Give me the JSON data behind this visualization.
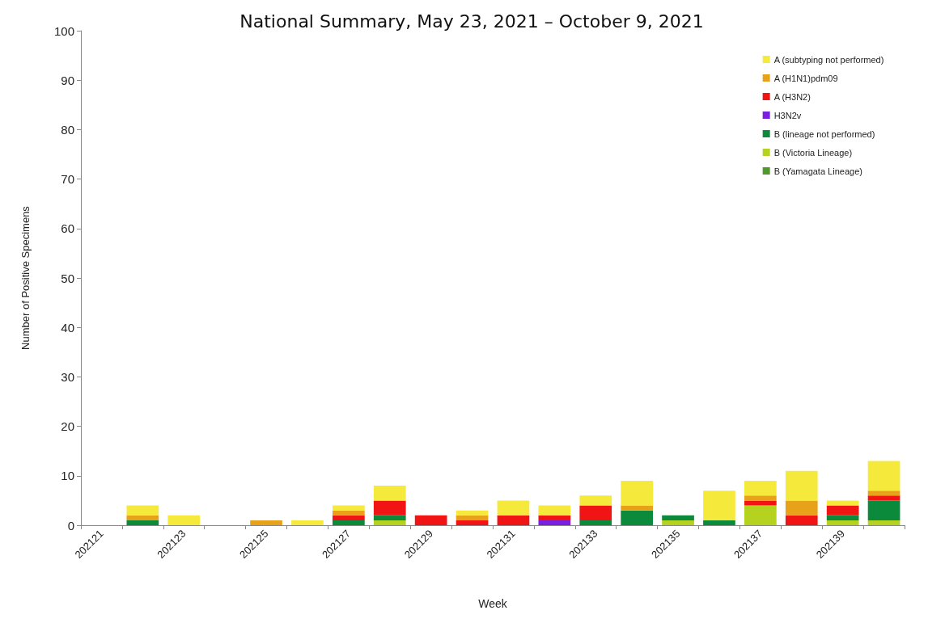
{
  "chart_data": {
    "type": "bar",
    "title": "National Summary, May 23, 2021 – October 9, 2021",
    "xlabel": "Week",
    "ylabel": "Number of Positive Specimens",
    "stacked": true,
    "legend": "top right",
    "grid": false,
    "categories": [
      "202121",
      null,
      "202123",
      null,
      "202125",
      null,
      "202127",
      null,
      "202129",
      null,
      "202131",
      null,
      "202133",
      null,
      "202135",
      null,
      "202137",
      null,
      "202139",
      null
    ],
    "ylim": [
      0,
      100
    ],
    "yticks": [
      0,
      10,
      20,
      30,
      40,
      50,
      60,
      70,
      80,
      90,
      100
    ],
    "series": [
      {
        "name": "B (Yamagata Lineage)",
        "color": "#4f9a2a",
        "values": [
          0,
          0,
          0,
          0,
          0,
          0,
          0,
          0,
          0,
          0,
          0,
          0,
          0,
          0,
          0,
          0,
          0,
          0,
          0,
          0
        ]
      },
      {
        "name": "B (Victoria Lineage)",
        "color": "#b5d31e",
        "values": [
          0,
          0,
          0,
          0,
          0,
          0,
          0,
          1,
          0,
          0,
          0,
          0,
          0,
          0,
          1,
          0,
          4,
          0,
          1,
          1
        ]
      },
      {
        "name": "B (lineage not performed)",
        "color": "#0c8a3c",
        "values": [
          0,
          1,
          0,
          0,
          0,
          0,
          1,
          1,
          0,
          0,
          0,
          0,
          1,
          3,
          1,
          1,
          0,
          0,
          1,
          4
        ]
      },
      {
        "name": "H3N2v",
        "color": "#7a1fe0",
        "values": [
          0,
          0,
          0,
          0,
          0,
          0,
          0,
          0,
          0,
          0,
          0,
          1,
          0,
          0,
          0,
          0,
          0,
          0,
          0,
          0
        ]
      },
      {
        "name": "A (H3N2)",
        "color": "#f01414",
        "values": [
          0,
          0,
          0,
          0,
          0,
          0,
          1,
          3,
          2,
          1,
          2,
          1,
          3,
          0,
          0,
          0,
          1,
          2,
          2,
          1
        ]
      },
      {
        "name": "A (H1N1)pdm09",
        "color": "#e8a21a",
        "values": [
          0,
          1,
          0,
          0,
          1,
          0,
          1,
          0,
          0,
          1,
          0,
          0,
          0,
          1,
          0,
          0,
          1,
          3,
          0,
          1
        ]
      },
      {
        "name": "A (subtyping not performed)",
        "color": "#f5ea3c",
        "values": [
          0,
          2,
          2,
          0,
          0,
          1,
          1,
          3,
          0,
          1,
          3,
          2,
          2,
          5,
          0,
          6,
          3,
          6,
          1,
          6
        ]
      }
    ]
  }
}
